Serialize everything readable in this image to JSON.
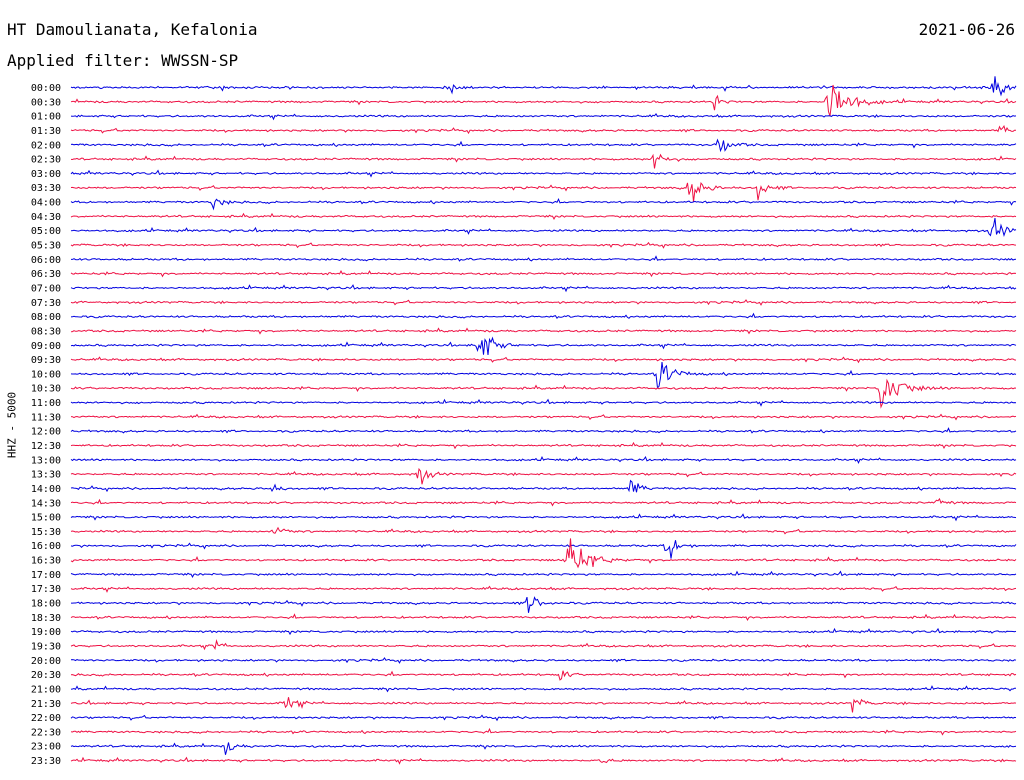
{
  "header": {
    "station": "HT Damoulianata, Kefalonia",
    "date": "2021-06-26",
    "filter": "Applied filter: WWSSN-SP"
  },
  "channel_label": "HHZ - 5000",
  "colors": {
    "blue": "#0000e0",
    "red": "#ee1144"
  },
  "chart_data": {
    "type": "line",
    "title": "HT Damoulianata, Kefalonia",
    "subtitle": "Applied filter: WWSSN-SP",
    "ylabel": "HHZ - 5000",
    "row_labels": [
      "00:00",
      "00:30",
      "01:00",
      "01:30",
      "02:00",
      "02:30",
      "03:00",
      "03:30",
      "04:00",
      "04:30",
      "05:00",
      "05:30",
      "06:00",
      "06:30",
      "07:00",
      "07:30",
      "08:00",
      "08:30",
      "09:00",
      "09:30",
      "10:00",
      "10:30",
      "11:00",
      "11:30",
      "12:00",
      "12:30",
      "13:00",
      "13:30",
      "14:00",
      "14:30",
      "15:00",
      "15:30",
      "16:00",
      "16:30",
      "17:00",
      "17:30",
      "18:00",
      "18:30",
      "19:00",
      "19:30",
      "20:00",
      "20:30",
      "21:00",
      "21:30",
      "22:00",
      "22:30",
      "23:00",
      "23:30"
    ],
    "row_minutes": 30,
    "trace_colors": [
      "#0000e0",
      "#ee1144"
    ],
    "events": [
      {
        "row": 0,
        "minute": 12.0,
        "amp": 7,
        "dur": 0.4
      },
      {
        "row": 0,
        "minute": 29.2,
        "amp": 14,
        "dur": 0.6
      },
      {
        "row": 1,
        "minute": 24.0,
        "amp": 30,
        "dur": 1.0
      },
      {
        "row": 1,
        "minute": 20.4,
        "amp": 6,
        "dur": 0.4
      },
      {
        "row": 3,
        "minute": 29.5,
        "amp": 7,
        "dur": 0.3
      },
      {
        "row": 4,
        "minute": 20.5,
        "amp": 10,
        "dur": 0.6
      },
      {
        "row": 5,
        "minute": 18.5,
        "amp": 12,
        "dur": 0.5
      },
      {
        "row": 7,
        "minute": 19.6,
        "amp": 15,
        "dur": 0.7
      },
      {
        "row": 7,
        "minute": 21.8,
        "amp": 10,
        "dur": 0.5
      },
      {
        "row": 8,
        "minute": 4.5,
        "amp": 7,
        "dur": 0.5
      },
      {
        "row": 10,
        "minute": 29.2,
        "amp": 12,
        "dur": 0.7
      },
      {
        "row": 18,
        "minute": 12.9,
        "amp": 22,
        "dur": 0.7
      },
      {
        "row": 20,
        "minute": 18.6,
        "amp": 16,
        "dur": 0.8
      },
      {
        "row": 21,
        "minute": 25.7,
        "amp": 23,
        "dur": 1.0
      },
      {
        "row": 27,
        "minute": 11.0,
        "amp": 11,
        "dur": 0.5
      },
      {
        "row": 28,
        "minute": 6.3,
        "amp": 7,
        "dur": 0.4
      },
      {
        "row": 28,
        "minute": 17.7,
        "amp": 11,
        "dur": 0.5
      },
      {
        "row": 29,
        "minute": 27.5,
        "amp": 5,
        "dur": 0.4
      },
      {
        "row": 31,
        "minute": 6.4,
        "amp": 5,
        "dur": 0.6
      },
      {
        "row": 32,
        "minute": 18.9,
        "amp": 19,
        "dur": 0.5
      },
      {
        "row": 33,
        "minute": 15.7,
        "amp": 26,
        "dur": 1.0
      },
      {
        "row": 36,
        "minute": 14.5,
        "amp": 12,
        "dur": 0.6
      },
      {
        "row": 39,
        "minute": 4.5,
        "amp": 5,
        "dur": 0.5
      },
      {
        "row": 41,
        "minute": 15.5,
        "amp": 6,
        "dur": 0.4
      },
      {
        "row": 43,
        "minute": 6.8,
        "amp": 9,
        "dur": 0.5
      },
      {
        "row": 43,
        "minute": 24.8,
        "amp": 7,
        "dur": 0.5
      },
      {
        "row": 46,
        "minute": 4.9,
        "amp": 6,
        "dur": 0.5
      },
      {
        "row": 47,
        "minute": 16.8,
        "amp": 4,
        "dur": 0.4
      }
    ]
  }
}
